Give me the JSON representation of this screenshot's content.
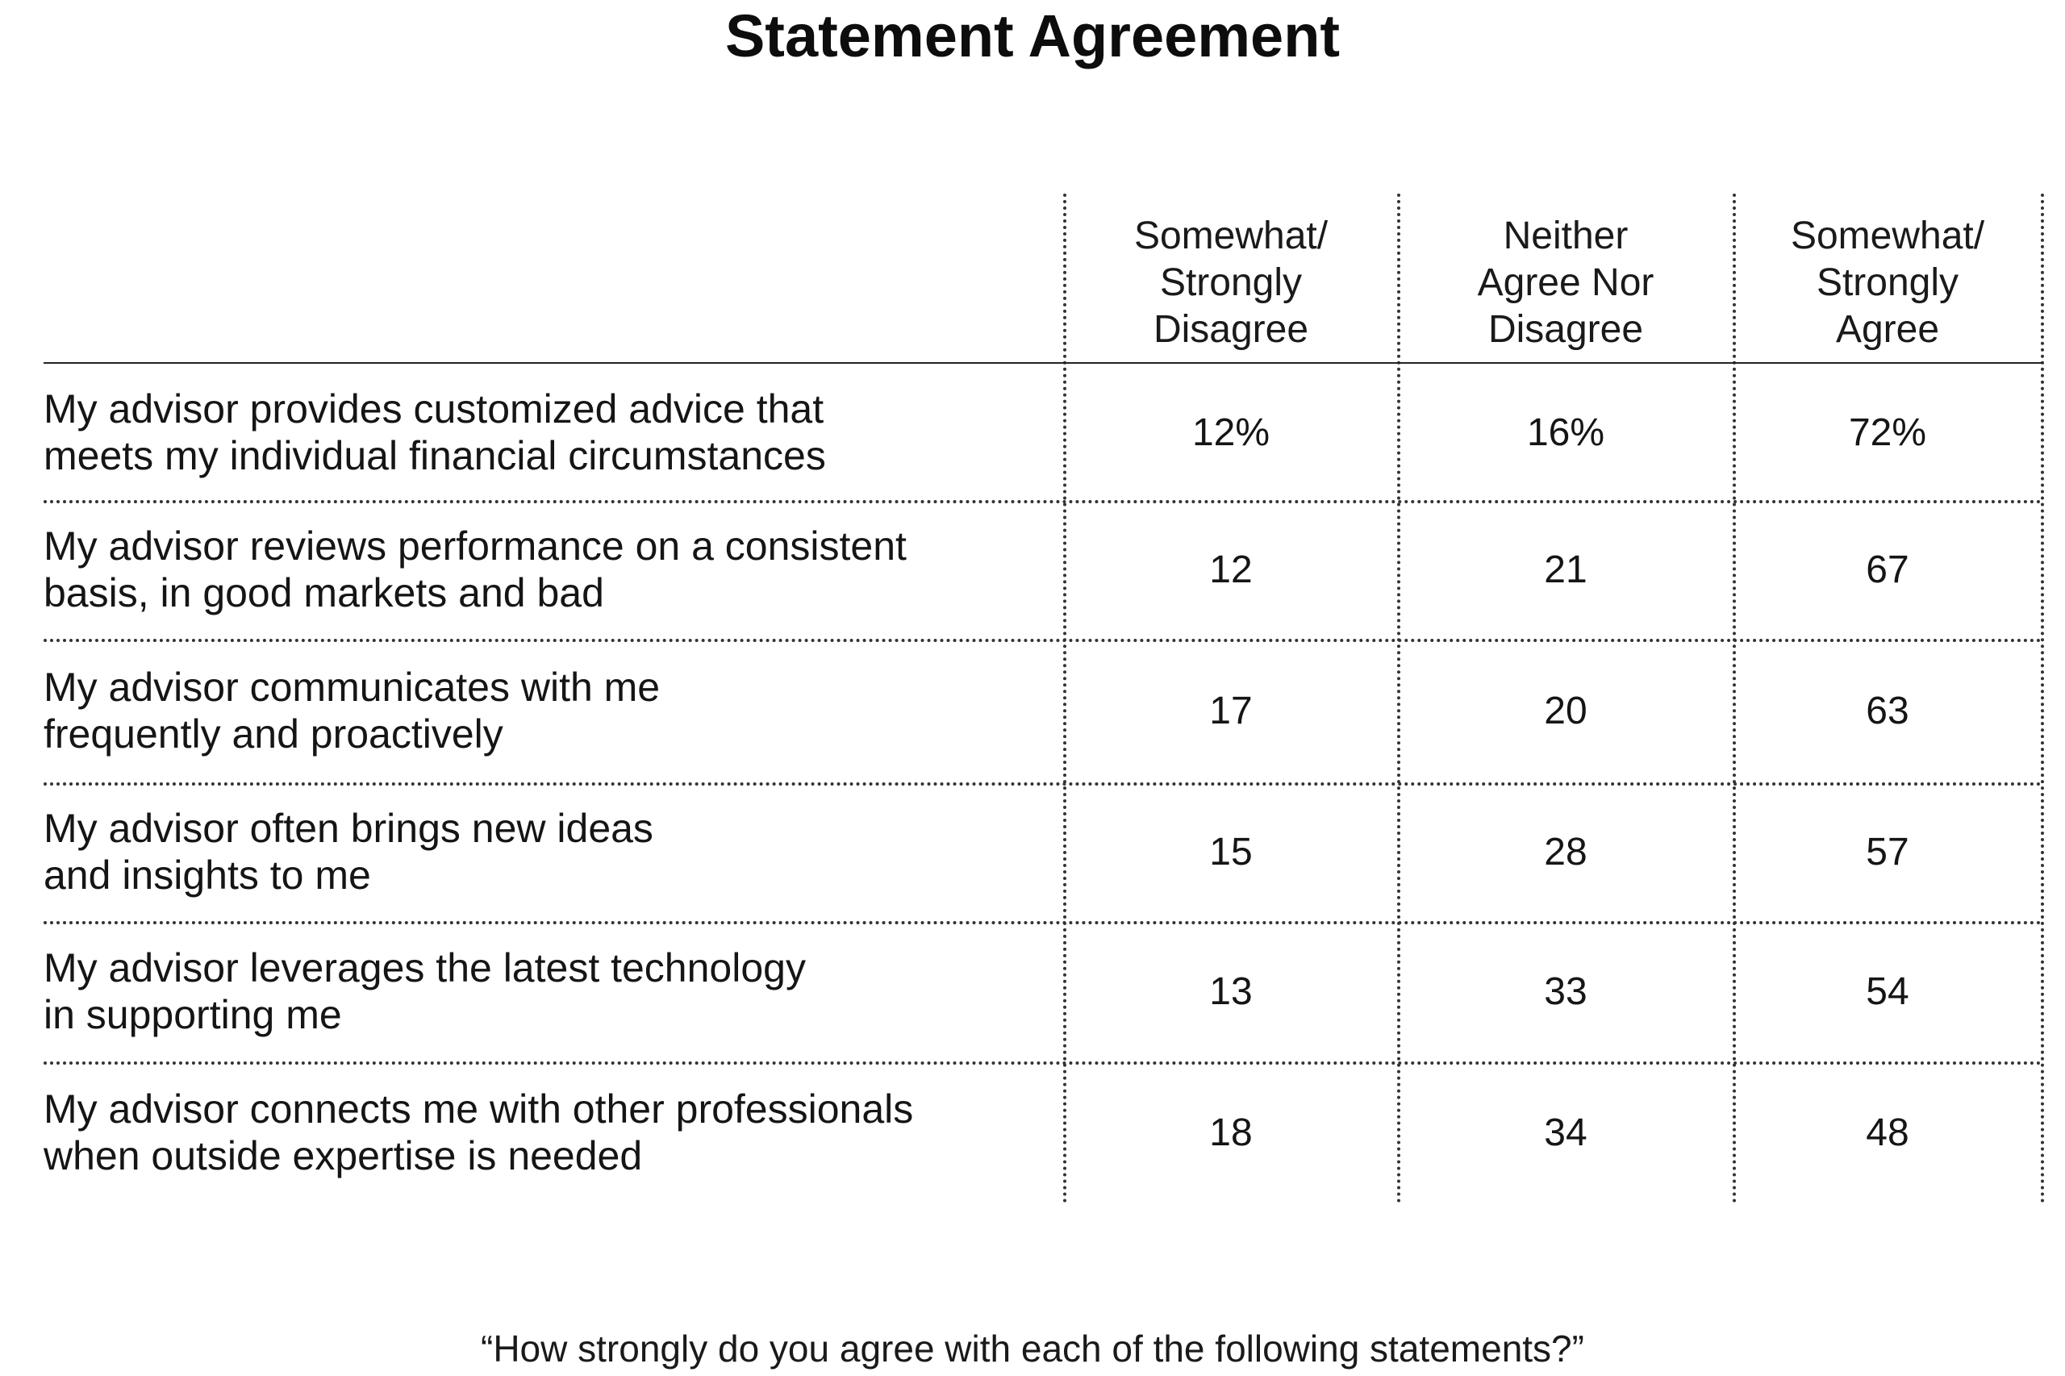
{
  "chart_data": {
    "type": "table",
    "title": "Statement Agreement",
    "columns": [
      "Somewhat/\nStrongly\nDisagree",
      "Neither\nAgree Nor\nDisagree",
      "Somewhat/\nStrongly\nAgree"
    ],
    "rows": [
      {
        "label": "My advisor provides customized advice that\nmeets my individual financial circumstances",
        "cells": [
          "12%",
          "16%",
          "72%"
        ],
        "values": [
          12,
          16,
          72
        ]
      },
      {
        "label": "My advisor reviews performance on a consistent\nbasis, in good markets and bad",
        "cells": [
          "12",
          "21",
          "67"
        ],
        "values": [
          12,
          21,
          67
        ]
      },
      {
        "label": "My advisor communicates with me\nfrequently and proactively",
        "cells": [
          "17",
          "20",
          "63"
        ],
        "values": [
          17,
          20,
          63
        ]
      },
      {
        "label": "My advisor often brings new ideas\nand insights to me",
        "cells": [
          "15",
          "28",
          "57"
        ],
        "values": [
          15,
          28,
          57
        ]
      },
      {
        "label": "My advisor leverages the latest technology\nin supporting me",
        "cells": [
          "13",
          "33",
          "54"
        ],
        "values": [
          13,
          33,
          54
        ]
      },
      {
        "label": "My advisor connects me with other professionals\nwhen outside expertise is needed",
        "cells": [
          "18",
          "34",
          "48"
        ],
        "values": [
          18,
          34,
          48
        ]
      }
    ],
    "footnote": "“How strongly do you agree with each of the following statements?”"
  }
}
